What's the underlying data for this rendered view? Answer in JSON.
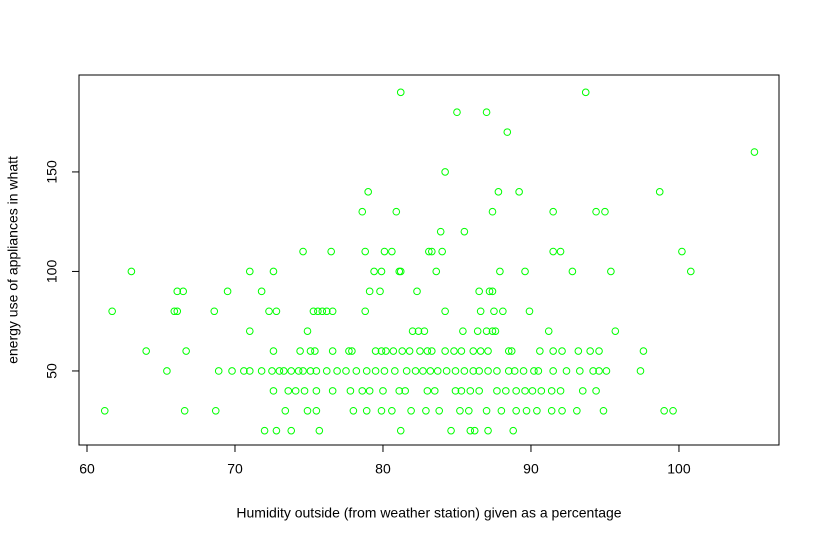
{
  "chart_data": {
    "type": "scatter",
    "xlabel": "Humidity outside (from weather station) given as a percentage",
    "ylabel": "energy use of appliances in whatt",
    "color": "#00ff00",
    "xlim": [
      59.46,
      106.76
    ],
    "ylim": [
      12.8,
      198.7
    ],
    "xticks": [
      60,
      70,
      80,
      90,
      100
    ],
    "yticks": [
      50,
      100,
      150
    ],
    "x": [
      81.2,
      93.7,
      85,
      87,
      88.4,
      105.1,
      84.2,
      79,
      87.8,
      89.2,
      98.7,
      78.6,
      80.9,
      87.4,
      91.5,
      94.4,
      95,
      83.9,
      85.5,
      74.6,
      76.5,
      78.8,
      80.1,
      80.6,
      83.1,
      83.3,
      84,
      91.5,
      92,
      100.2,
      63,
      71,
      72.6,
      79.4,
      79.9,
      81.1,
      81.2,
      83.6,
      87.9,
      89.6,
      92.8,
      95.4,
      100.8,
      66.1,
      66.5,
      69.5,
      71.8,
      79.1,
      79.8,
      82.3,
      86.5,
      87.2,
      87.4,
      61.7,
      65.9,
      66.1,
      68.6,
      72.3,
      72.8,
      75.3,
      75.6,
      75.9,
      76.2,
      76.6,
      78.8,
      84.2,
      86.6,
      87.5,
      88.1,
      89.9,
      71,
      74.9,
      82,
      82.4,
      82.8,
      85.4,
      86.4,
      87,
      87.4,
      87.6,
      91.2,
      95.7,
      64,
      66.7,
      72.6,
      74.4,
      75.1,
      75.4,
      76.6,
      77.7,
      77.9,
      79.5,
      79.9,
      80.2,
      80.7,
      81.3,
      81.8,
      82.5,
      83,
      83.3,
      84.2,
      84.8,
      85.3,
      86.1,
      86.6,
      87.1,
      88.5,
      88.7,
      90.6,
      91.5,
      92.1,
      93.2,
      94,
      94.6,
      97.6,
      65.4,
      68.9,
      69.8,
      70.6,
      71,
      71.8,
      72.5,
      73,
      73.3,
      73.8,
      74.3,
      74.6,
      75.1,
      75.5,
      76.2,
      76.9,
      77.5,
      78.2,
      78.9,
      79.5,
      80.1,
      80.8,
      81.6,
      82.2,
      82.7,
      83.2,
      83.7,
      84.3,
      84.9,
      85.5,
      86.1,
      86.5,
      87.1,
      87.7,
      88.5,
      88.9,
      89.5,
      90.2,
      90.5,
      91.5,
      92.4,
      93.3,
      94.2,
      94.6,
      95.1,
      97.4,
      72.6,
      73.6,
      74.1,
      74.7,
      75.5,
      76.6,
      77.8,
      78.6,
      79.1,
      80,
      81.1,
      81.5,
      83,
      83.5,
      84.9,
      85.3,
      85.9,
      86.5,
      87.7,
      88.3,
      89,
      89.6,
      90.1,
      90.7,
      91.4,
      92,
      93.5,
      94.4,
      61.2,
      66.6,
      68.7,
      73.4,
      74.9,
      75.5,
      78,
      78.9,
      79.9,
      80.6,
      81.9,
      82.9,
      83.8,
      85.2,
      85.8,
      87,
      88,
      89,
      89.7,
      90.4,
      91.4,
      92.1,
      93.1,
      94.9,
      99,
      99.6,
      72,
      72.8,
      73.8,
      75.7,
      81.2,
      84.6,
      85.9,
      86.2,
      87.1,
      88.8
    ],
    "values": [
      190,
      190,
      180,
      180,
      170,
      160,
      150,
      140,
      140,
      140,
      140,
      130,
      130,
      130,
      130,
      130,
      130,
      120,
      120,
      110,
      110,
      110,
      110,
      110,
      110,
      110,
      110,
      110,
      110,
      110,
      100,
      100,
      100,
      100,
      100,
      100,
      100,
      100,
      100,
      100,
      100,
      100,
      100,
      90,
      90,
      90,
      90,
      90,
      90,
      90,
      90,
      90,
      90,
      80,
      80,
      80,
      80,
      80,
      80,
      80,
      80,
      80,
      80,
      80,
      80,
      80,
      80,
      80,
      80,
      80,
      70,
      70,
      70,
      70,
      70,
      70,
      70,
      70,
      70,
      70,
      70,
      70,
      60,
      60,
      60,
      60,
      60,
      60,
      60,
      60,
      60,
      60,
      60,
      60,
      60,
      60,
      60,
      60,
      60,
      60,
      60,
      60,
      60,
      60,
      60,
      60,
      60,
      60,
      60,
      60,
      60,
      60,
      60,
      60,
      60,
      50,
      50,
      50,
      50,
      50,
      50,
      50,
      50,
      50,
      50,
      50,
      50,
      50,
      50,
      50,
      50,
      50,
      50,
      50,
      50,
      50,
      50,
      50,
      50,
      50,
      50,
      50,
      50,
      50,
      50,
      50,
      50,
      50,
      50,
      50,
      50,
      50,
      50,
      50,
      50,
      50,
      50,
      50,
      50,
      50,
      50,
      40,
      40,
      40,
      40,
      40,
      40,
      40,
      40,
      40,
      40,
      40,
      40,
      40,
      40,
      40,
      40,
      40,
      40,
      40,
      40,
      40,
      40,
      40,
      40,
      40,
      40,
      40,
      40,
      30,
      30,
      30,
      30,
      30,
      30,
      30,
      30,
      30,
      30,
      30,
      30,
      30,
      30,
      30,
      30,
      30,
      30,
      30,
      30,
      30,
      30,
      30,
      30,
      30,
      30,
      20,
      20,
      20,
      20,
      20,
      20,
      20,
      20,
      20,
      20
    ]
  }
}
